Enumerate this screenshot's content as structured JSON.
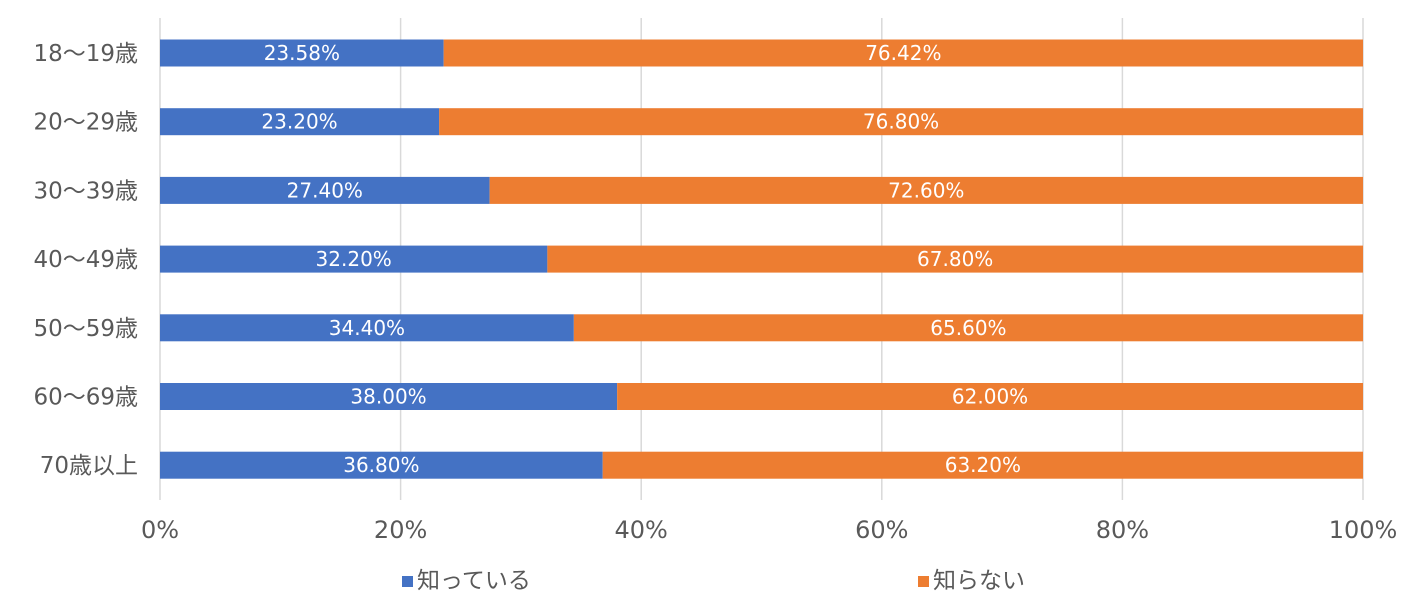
{
  "chart_data": {
    "type": "bar",
    "orientation": "horizontal",
    "stacked": true,
    "categories": [
      "18～19歳",
      "20～29歳",
      "30～39歳",
      "40～49歳",
      "50～59歳",
      "60～69歳",
      "70歳以上"
    ],
    "series": [
      {
        "name": "知っている",
        "color": "#4472c4",
        "values": [
          23.58,
          23.2,
          27.4,
          32.2,
          34.4,
          38.0,
          36.8
        ],
        "labels": [
          "23.58%",
          "23.20%",
          "27.40%",
          "32.20%",
          "34.40%",
          "38.00%",
          "36.80%"
        ]
      },
      {
        "name": "知らない",
        "color": "#ed7d31",
        "values": [
          76.42,
          76.8,
          72.6,
          67.8,
          65.6,
          62.0,
          63.2
        ],
        "labels": [
          "76.42%",
          "76.80%",
          "72.60%",
          "67.80%",
          "65.60%",
          "62.00%",
          "63.20%"
        ]
      }
    ],
    "x_ticks": [
      "0%",
      "20%",
      "40%",
      "60%",
      "80%",
      "100%"
    ],
    "xlim": [
      0,
      100
    ],
    "grid": true,
    "legend_position": "bottom",
    "title": "",
    "xlabel": "",
    "ylabel": ""
  }
}
